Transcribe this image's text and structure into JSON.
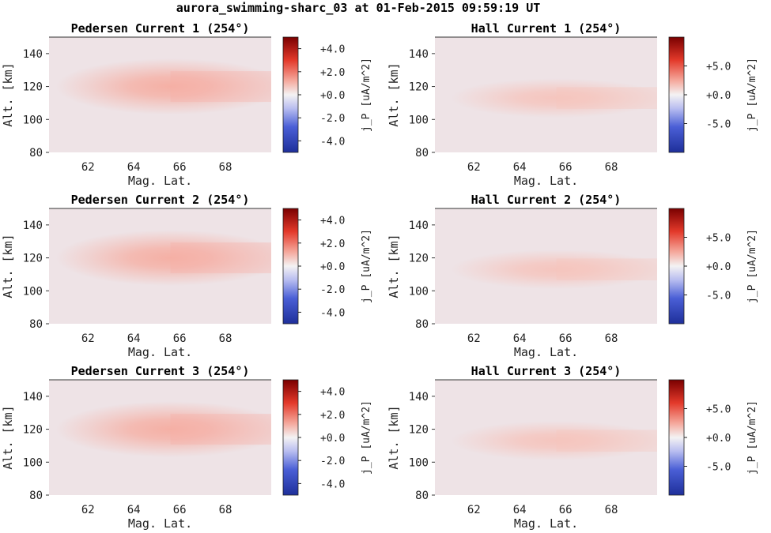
{
  "figure_title": "aurora_swimming-sharc_03 at 01-Feb-2015 09:59:19 UT",
  "colors": {
    "background_field": "#eee3e6",
    "neg_max": "#1e2f9a",
    "zero": "#f4f2f3",
    "pos_max": "#7a0000"
  },
  "chart_data": [
    {
      "type": "heatmap",
      "title": "Pedersen Current 1 (254°)",
      "xlabel": "Mag. Lat.",
      "ylabel": "Alt. [km]",
      "xlim": [
        60.3,
        70
      ],
      "ylim": [
        80,
        150
      ],
      "xticks": [
        "62",
        "64",
        "66",
        "68"
      ],
      "yticks": [
        "80",
        "100",
        "120",
        "140"
      ],
      "peak": {
        "lat": 65.6,
        "alt": 120,
        "value": 1.1
      },
      "colorbar": {
        "label": "j_P [uA/m^2]",
        "range": [
          -5,
          5
        ],
        "ticks": [
          "+4.0",
          "+2.0",
          "+0.0",
          "-2.0",
          "-4.0"
        ]
      }
    },
    {
      "type": "heatmap",
      "title": "Hall Current 1 (254°)",
      "xlabel": "Mag. Lat.",
      "ylabel": "Alt. [km]",
      "xlim": [
        60.3,
        70
      ],
      "ylim": [
        80,
        150
      ],
      "xticks": [
        "62",
        "64",
        "66",
        "68"
      ],
      "yticks": [
        "80",
        "100",
        "120",
        "140"
      ],
      "peak": {
        "lat": 65.6,
        "alt": 113,
        "value": 1.5
      },
      "colorbar": {
        "label": "j_P [uA/m^2]",
        "range": [
          -10,
          10
        ],
        "ticks": [
          "+5.0",
          "+0.0",
          "-5.0"
        ]
      }
    },
    {
      "type": "heatmap",
      "title": "Pedersen Current 2 (254°)",
      "xlabel": "Mag. Lat.",
      "ylabel": "Alt. [km]",
      "xlim": [
        60.3,
        70
      ],
      "ylim": [
        80,
        150
      ],
      "xticks": [
        "62",
        "64",
        "66",
        "68"
      ],
      "yticks": [
        "80",
        "100",
        "120",
        "140"
      ],
      "peak": {
        "lat": 65.6,
        "alt": 120,
        "value": 1.1
      },
      "colorbar": {
        "label": "j_P [uA/m^2]",
        "range": [
          -5,
          5
        ],
        "ticks": [
          "+4.0",
          "+2.0",
          "+0.0",
          "-2.0",
          "-4.0"
        ]
      }
    },
    {
      "type": "heatmap",
      "title": "Hall Current 2 (254°)",
      "xlabel": "Mag. Lat.",
      "ylabel": "Alt. [km]",
      "xlim": [
        60.3,
        70
      ],
      "ylim": [
        80,
        150
      ],
      "xticks": [
        "62",
        "64",
        "66",
        "68"
      ],
      "yticks": [
        "80",
        "100",
        "120",
        "140"
      ],
      "peak": {
        "lat": 65.6,
        "alt": 113,
        "value": 1.5
      },
      "colorbar": {
        "label": "j_P [uA/m^2]",
        "range": [
          -10,
          10
        ],
        "ticks": [
          "+5.0",
          "+0.0",
          "-5.0"
        ]
      }
    },
    {
      "type": "heatmap",
      "title": "Pedersen Current 3 (254°)",
      "xlabel": "Mag. Lat.",
      "ylabel": "Alt. [km]",
      "xlim": [
        60.3,
        70
      ],
      "ylim": [
        80,
        150
      ],
      "xticks": [
        "62",
        "64",
        "66",
        "68"
      ],
      "yticks": [
        "80",
        "100",
        "120",
        "140"
      ],
      "peak": {
        "lat": 65.6,
        "alt": 120,
        "value": 1.1
      },
      "colorbar": {
        "label": "j_P [uA/m^2]",
        "range": [
          -5,
          5
        ],
        "ticks": [
          "+4.0",
          "+2.0",
          "+0.0",
          "-2.0",
          "-4.0"
        ]
      }
    },
    {
      "type": "heatmap",
      "title": "Hall Current 3 (254°)",
      "xlabel": "Mag. Lat.",
      "ylabel": "Alt. [km]",
      "xlim": [
        60.3,
        70
      ],
      "ylim": [
        80,
        150
      ],
      "xticks": [
        "62",
        "64",
        "66",
        "68"
      ],
      "yticks": [
        "80",
        "100",
        "120",
        "140"
      ],
      "peak": {
        "lat": 65.6,
        "alt": 113,
        "value": 1.5
      },
      "colorbar": {
        "label": "j_P [uA/m^2]",
        "range": [
          -10,
          10
        ],
        "ticks": [
          "+5.0",
          "+0.0",
          "-5.0"
        ]
      }
    }
  ]
}
